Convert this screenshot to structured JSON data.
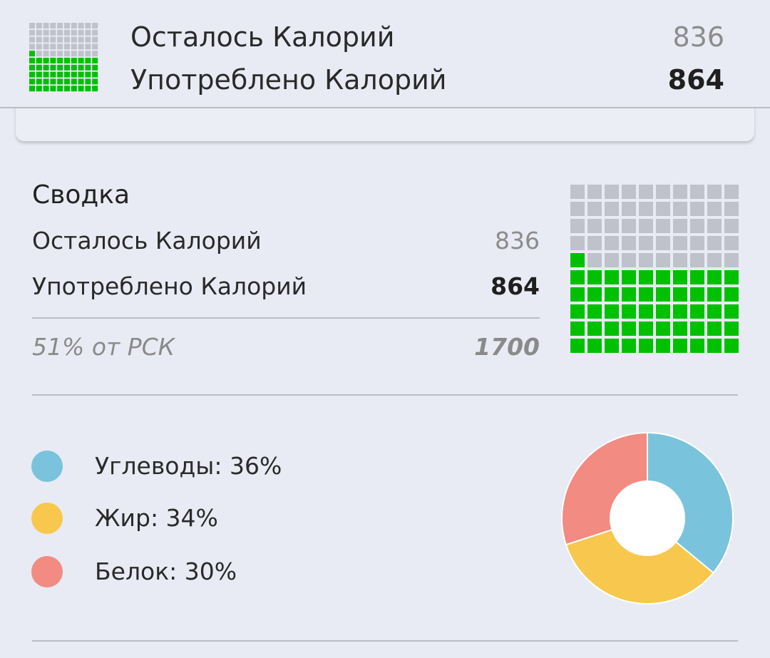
{
  "top_bar": {
    "remaining_label": "Осталось Калорий",
    "remaining_value": "836",
    "consumed_label": "Употреблено Калорий",
    "consumed_value": "864"
  },
  "summary": {
    "title": "Сводка",
    "remaining_label": "Осталось Калорий",
    "remaining_value": "836",
    "consumed_label": "Употреблено Калорий",
    "consumed_value": "864",
    "rsk_label": "51% от РСК",
    "rsk_value": "1700"
  },
  "progress": {
    "filled_fraction": 0.51,
    "filled_color": "#00c000",
    "empty_color": "#bfc2cb"
  },
  "macros": {
    "items": [
      {
        "label": "Углеводы: 36%",
        "percent": 36,
        "color": "#7ac3dc"
      },
      {
        "label": "Жир: 34%",
        "percent": 34,
        "color": "#f7c84d"
      },
      {
        "label": "Белок: 30%",
        "percent": 30,
        "color": "#f28b82"
      }
    ]
  },
  "chart_data": {
    "type": "pie",
    "categories": [
      "Углеводы",
      "Жир",
      "Белок"
    ],
    "values": [
      36,
      34,
      30
    ],
    "colors": [
      "#7ac3dc",
      "#f7c84d",
      "#f28b82"
    ],
    "title": ""
  }
}
